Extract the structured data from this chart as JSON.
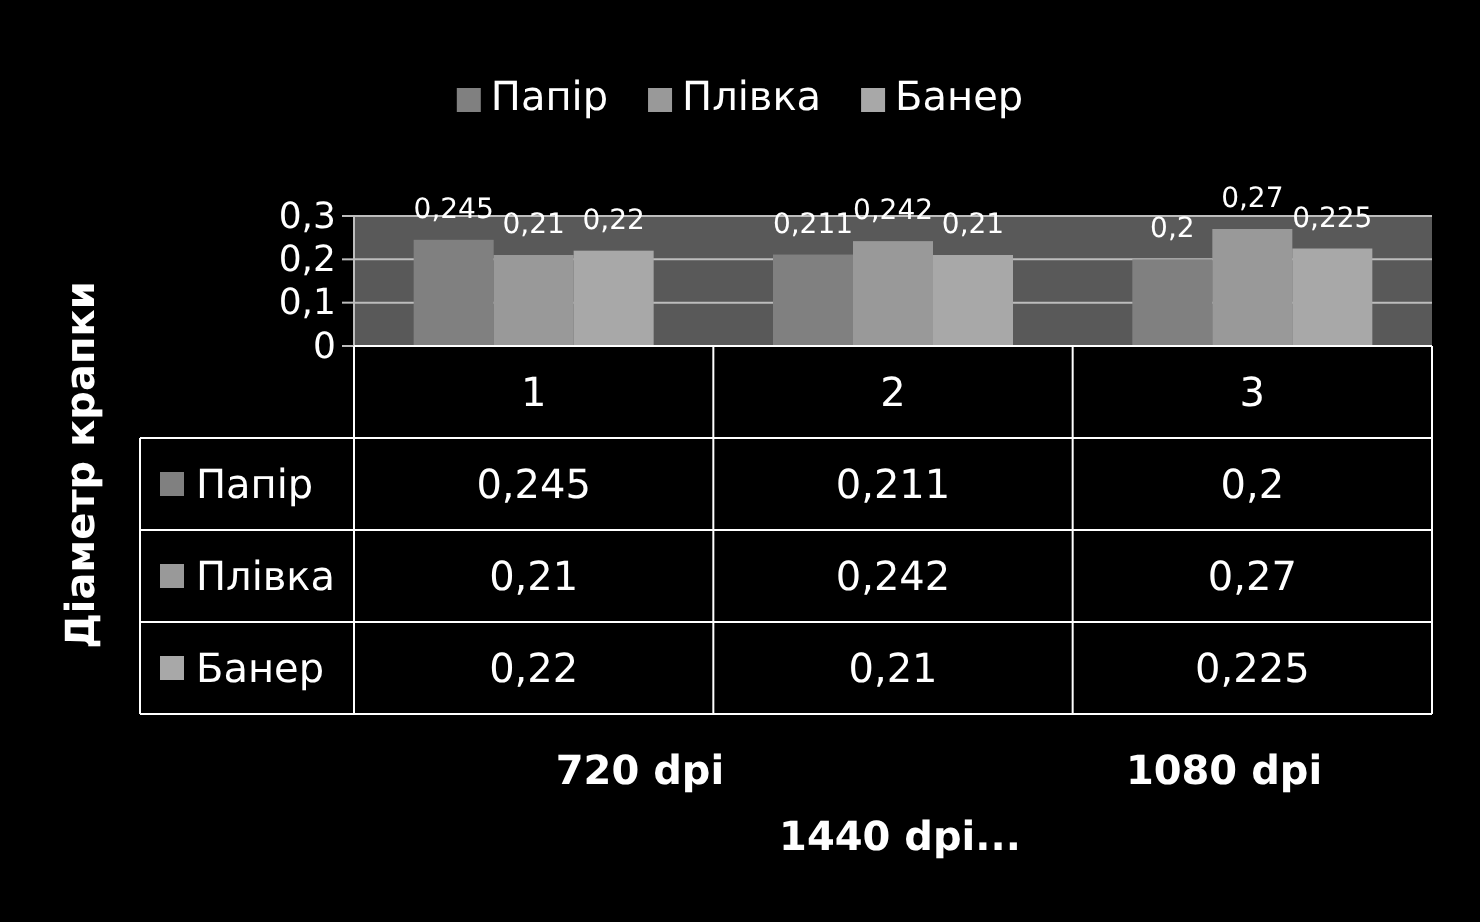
{
  "chart_data": {
    "type": "bar",
    "categories": [
      "1",
      "2",
      "3"
    ],
    "series": [
      {
        "name": "Папір",
        "color": "#808080",
        "values": [
          0.245,
          0.211,
          0.2
        ],
        "value_labels": [
          "0,245",
          "0,211",
          "0,2"
        ]
      },
      {
        "name": "Плівка",
        "color": "#999999",
        "values": [
          0.21,
          0.242,
          0.27
        ],
        "value_labels": [
          "0,21",
          "0,242",
          "0,27"
        ]
      },
      {
        "name": "Банер",
        "color": "#a8a8a8",
        "values": [
          0.22,
          0.21,
          0.225
        ],
        "value_labels": [
          "0,22",
          "0,21",
          "0,225"
        ]
      }
    ],
    "ylabel": "Діаметр крапки",
    "ylim": [
      0,
      0.3
    ],
    "yticks": [
      {
        "value": 0,
        "label": "0"
      },
      {
        "value": 0.1,
        "label": "0,1"
      },
      {
        "value": 0.2,
        "label": "0,2"
      },
      {
        "value": 0.3,
        "label": "0,3"
      }
    ],
    "grid": "y",
    "legend": "top",
    "annotations": [
      "720 dpi",
      "1080 dpi",
      "1440 dpi..."
    ]
  }
}
